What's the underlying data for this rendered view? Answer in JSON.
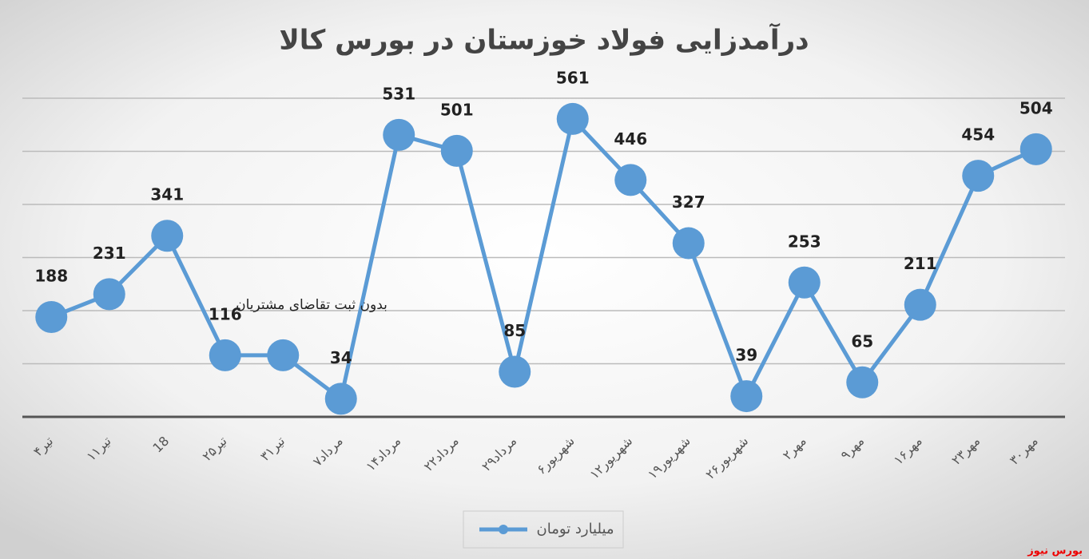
{
  "chart_data": {
    "type": "line",
    "title": "درآمدزایی فولاد خوزستان در بورس کالا",
    "categories": [
      "۴تیر",
      "۱۱تیر",
      "18",
      "۲۵تیر",
      "۳۱تیر",
      "۷مرداد",
      "۱۴مرداد",
      "۲۲مرداد",
      "۲۹مرداد",
      "۶شهریور",
      "۱۲شهریور",
      "۱۹شهریور",
      "۲۶شهریور",
      "۲مهر",
      "۹مهر",
      "۱۶مهر",
      "۲۳مهر",
      "۳۰مهر"
    ],
    "series": [
      {
        "name": "میلیارد تومان",
        "color": "#5b9bd5",
        "values": [
          188,
          231,
          341,
          116,
          116,
          34,
          531,
          501,
          85,
          561,
          446,
          327,
          39,
          253,
          65,
          211,
          454,
          504
        ],
        "value_labels": [
          "188",
          "231",
          "341",
          "116",
          null,
          "34",
          "531",
          "501",
          "85",
          "561",
          "446",
          "327",
          "39",
          "253",
          "65",
          "211",
          "454",
          "504"
        ]
      }
    ],
    "ylim": [
      0,
      600
    ],
    "yticks": [
      0,
      100,
      200,
      300,
      400,
      500,
      600
    ],
    "grid": true,
    "annotation": "بدون ثبت تقاضای مشتریان",
    "legend": "bottom",
    "watermark": "بورس نیوز"
  }
}
